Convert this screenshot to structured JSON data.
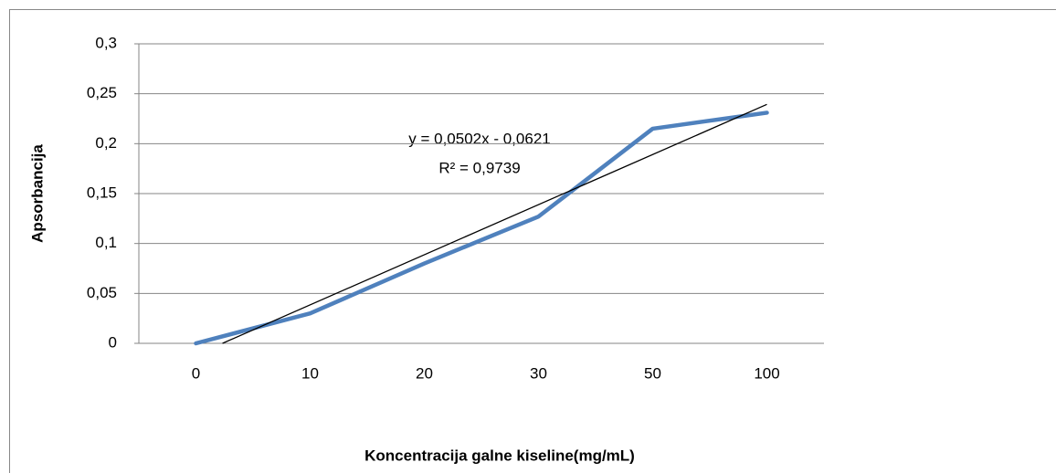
{
  "chart_data": {
    "type": "line",
    "x_label": "Koncentracija galne kiseline(mg/mL)",
    "y_label": "Apsorbancija",
    "categories": [
      "0",
      "10",
      "20",
      "30",
      "50",
      "100"
    ],
    "series": [
      {
        "name": "Apsorbancija",
        "color": "#4f81bd",
        "values": [
          0,
          0.03,
          0.08,
          0.127,
          0.215,
          0.231
        ]
      }
    ],
    "trendline": {
      "type": "linear",
      "color": "#000000"
    },
    "annotations": [
      "y = 0,0502x - 0,0621",
      "R² = 0,9739"
    ],
    "ylim": [
      0,
      0.3
    ],
    "yticks": [
      0,
      {
        "value": 0.05,
        "label": "0,05"
      },
      {
        "value": 0.1,
        "label": "0,1"
      },
      {
        "value": 0.15,
        "label": "0,15"
      },
      {
        "value": 0.2,
        "label": "0,2"
      },
      {
        "value": 0.25,
        "label": "0,25"
      },
      {
        "value": 0.3,
        "label": "0,3"
      }
    ],
    "grid": true,
    "legend": false
  }
}
